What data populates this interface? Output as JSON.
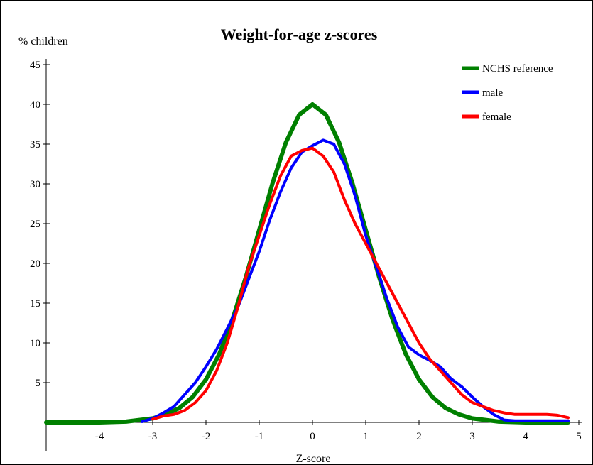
{
  "chart_data": {
    "type": "line",
    "title": "Weight-for-age z-scores",
    "xlabel": "Z-score",
    "ylabel": "% children",
    "xlim": [
      -5,
      5
    ],
    "ylim": [
      0,
      45
    ],
    "x_ticks": [
      -4,
      -3,
      -2,
      -1,
      0,
      1,
      2,
      3,
      4,
      5
    ],
    "y_ticks": [
      5,
      10,
      15,
      20,
      25,
      30,
      35,
      40,
      45
    ],
    "grid": false,
    "legend_position": "top-right",
    "series": [
      {
        "name": "NCHS reference",
        "color": "#008000",
        "points": [
          [
            -5,
            0
          ],
          [
            -4,
            0
          ],
          [
            -3.5,
            0.1
          ],
          [
            -3,
            0.5
          ],
          [
            -2.75,
            1.0
          ],
          [
            -2.5,
            1.8
          ],
          [
            -2.25,
            3.2
          ],
          [
            -2,
            5.4
          ],
          [
            -1.75,
            8.6
          ],
          [
            -1.5,
            13.0
          ],
          [
            -1.25,
            18.3
          ],
          [
            -1,
            24.2
          ],
          [
            -0.75,
            30.1
          ],
          [
            -0.5,
            35.2
          ],
          [
            -0.25,
            38.7
          ],
          [
            0,
            40.0
          ],
          [
            0.25,
            38.7
          ],
          [
            0.5,
            35.2
          ],
          [
            0.75,
            30.1
          ],
          [
            1,
            24.2
          ],
          [
            1.25,
            18.3
          ],
          [
            1.5,
            13.0
          ],
          [
            1.75,
            8.6
          ],
          [
            2,
            5.4
          ],
          [
            2.25,
            3.2
          ],
          [
            2.5,
            1.8
          ],
          [
            2.75,
            1.0
          ],
          [
            3,
            0.5
          ],
          [
            3.5,
            0.1
          ],
          [
            4,
            0
          ],
          [
            4.8,
            0
          ]
        ]
      },
      {
        "name": "male",
        "color": "#0000ff",
        "points": [
          [
            -3.2,
            0.1
          ],
          [
            -3,
            0.5
          ],
          [
            -2.8,
            1.2
          ],
          [
            -2.6,
            2.0
          ],
          [
            -2.4,
            3.5
          ],
          [
            -2.2,
            5.0
          ],
          [
            -2,
            7.0
          ],
          [
            -1.8,
            9.2
          ],
          [
            -1.6,
            11.8
          ],
          [
            -1.4,
            14.5
          ],
          [
            -1.2,
            18.0
          ],
          [
            -1,
            21.5
          ],
          [
            -0.8,
            25.5
          ],
          [
            -0.6,
            29.0
          ],
          [
            -0.4,
            32.0
          ],
          [
            -0.2,
            34.0
          ],
          [
            0,
            34.8
          ],
          [
            0.2,
            35.5
          ],
          [
            0.4,
            35.0
          ],
          [
            0.6,
            32.5
          ],
          [
            0.8,
            28.5
          ],
          [
            1,
            23.5
          ],
          [
            1.2,
            19.5
          ],
          [
            1.4,
            15.5
          ],
          [
            1.6,
            12.0
          ],
          [
            1.8,
            9.5
          ],
          [
            2,
            8.5
          ],
          [
            2.2,
            7.8
          ],
          [
            2.4,
            7.0
          ],
          [
            2.6,
            5.5
          ],
          [
            2.8,
            4.5
          ],
          [
            3,
            3.2
          ],
          [
            3.2,
            2.0
          ],
          [
            3.4,
            1.0
          ],
          [
            3.6,
            0.3
          ],
          [
            3.8,
            0.2
          ],
          [
            4.2,
            0.2
          ],
          [
            4.8,
            0.2
          ]
        ]
      },
      {
        "name": "female",
        "color": "#ff0000",
        "points": [
          [
            -3,
            0.4
          ],
          [
            -2.8,
            0.8
          ],
          [
            -2.6,
            1.0
          ],
          [
            -2.4,
            1.5
          ],
          [
            -2.2,
            2.5
          ],
          [
            -2,
            4.0
          ],
          [
            -1.8,
            6.5
          ],
          [
            -1.6,
            10.0
          ],
          [
            -1.4,
            14.5
          ],
          [
            -1.2,
            19.5
          ],
          [
            -1,
            23.5
          ],
          [
            -0.8,
            27.5
          ],
          [
            -0.6,
            31.0
          ],
          [
            -0.4,
            33.5
          ],
          [
            -0.2,
            34.2
          ],
          [
            0,
            34.5
          ],
          [
            0.2,
            33.5
          ],
          [
            0.4,
            31.5
          ],
          [
            0.6,
            28.0
          ],
          [
            0.8,
            25.0
          ],
          [
            1,
            22.5
          ],
          [
            1.2,
            20.0
          ],
          [
            1.4,
            17.5
          ],
          [
            1.6,
            15.0
          ],
          [
            1.8,
            12.5
          ],
          [
            2,
            10.0
          ],
          [
            2.2,
            8.0
          ],
          [
            2.4,
            6.5
          ],
          [
            2.6,
            5.0
          ],
          [
            2.8,
            3.5
          ],
          [
            3,
            2.5
          ],
          [
            3.2,
            2.0
          ],
          [
            3.4,
            1.5
          ],
          [
            3.6,
            1.2
          ],
          [
            3.8,
            1.0
          ],
          [
            4,
            1.0
          ],
          [
            4.4,
            1.0
          ],
          [
            4.6,
            0.9
          ],
          [
            4.8,
            0.6
          ]
        ]
      }
    ]
  }
}
